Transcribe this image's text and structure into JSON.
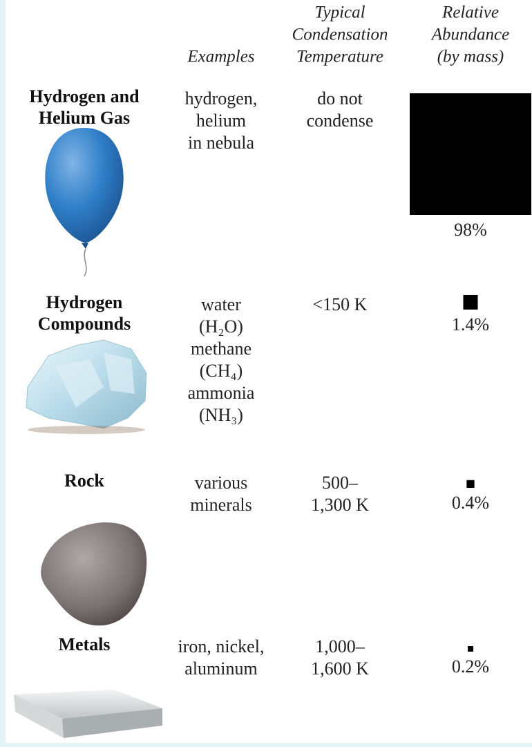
{
  "header": {
    "columns": [
      "Examples",
      [
        "Typical",
        "Condensation",
        "Temperature"
      ],
      [
        "Relative",
        "Abundance",
        "(by mass)"
      ]
    ]
  },
  "rows": [
    {
      "name": [
        "Hydrogen and",
        "Helium Gas"
      ],
      "examples": [
        "hydrogen,",
        "helium",
        "in nebula"
      ],
      "temperature": [
        "do not",
        "condense"
      ],
      "abundance": 98,
      "abundance_label": "98%"
    },
    {
      "name": [
        "Hydrogen",
        "Compounds"
      ],
      "examples": [
        "water",
        "(H₂O)",
        "methane",
        "(CH₄)",
        "ammonia",
        "(NH₃)"
      ],
      "temperature": [
        "<150 K"
      ],
      "abundance": 1.4,
      "abundance_label": "1.4%"
    },
    {
      "name": [
        "Rock"
      ],
      "examples": [
        "various",
        "minerals"
      ],
      "temperature": [
        "500–",
        "1,300 K"
      ],
      "abundance": 0.4,
      "abundance_label": "0.4%"
    },
    {
      "name": [
        "Metals"
      ],
      "examples": [
        "iron, nickel,",
        "aluminum"
      ],
      "temperature": [
        "1,000–",
        "1,600 K"
      ],
      "abundance": 0.2,
      "abundance_label": "0.2%"
    }
  ]
}
